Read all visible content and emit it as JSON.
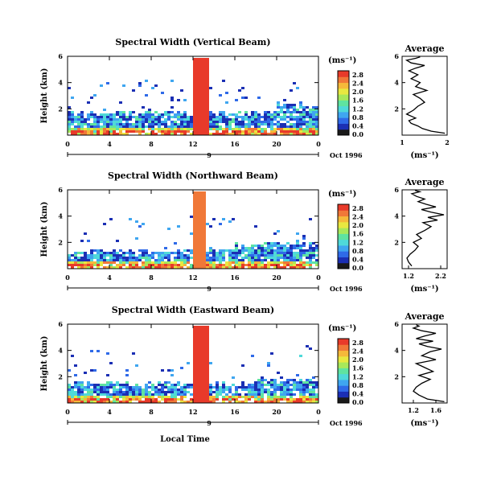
{
  "x_axis_label": "Local Time",
  "date_label": "Oct 1996",
  "colors": {
    "colormap": [
      "#1a1a1a",
      "#1b2fb4",
      "#2f6ae8",
      "#3fa6f0",
      "#4fd9d9",
      "#5fe3a0",
      "#a8e85a",
      "#e8e840",
      "#f5b93a",
      "#f07838",
      "#e83a2a"
    ]
  },
  "chart_data": [
    {
      "type": "heatmap",
      "title": "Spectral Width (Vertical Beam)",
      "xlabel": "",
      "ylabel": "Height (km)",
      "xlim": [
        0,
        24
      ],
      "ylim": [
        0,
        6
      ],
      "x_ticks": [
        "0",
        "4",
        "8",
        "12",
        "16",
        "20",
        "0"
      ],
      "y_ticks": [
        "2",
        "4",
        "6"
      ],
      "day_label": "9",
      "colorbar": {
        "unit": "(ms⁻¹)",
        "ticks": [
          "0.0",
          "0.4",
          "0.8",
          "1.2",
          "1.6",
          "2.0",
          "2.4",
          "2.8"
        ],
        "max": 2.8
      },
      "field": {
        "base_top_km": 1.8,
        "burst_start_h": 12,
        "burst_end_h": 13.5,
        "burst_top_km": 6,
        "burst_value": 2.7,
        "late_bump_start_h": 20,
        "late_bump_top_km": 2.4
      }
    },
    {
      "type": "heatmap",
      "title": "Spectral Width (Northward Beam)",
      "xlabel": "",
      "ylabel": "Height (km)",
      "xlim": [
        0,
        24
      ],
      "ylim": [
        0,
        6
      ],
      "x_ticks": [
        "0",
        "4",
        "8",
        "12",
        "16",
        "20",
        "0"
      ],
      "y_ticks": [
        "2",
        "4",
        "6"
      ],
      "day_label": "9",
      "colorbar": {
        "unit": "(ms⁻¹)",
        "ticks": [
          "0.0",
          "0.4",
          "0.8",
          "1.2",
          "1.6",
          "2.0",
          "2.4",
          "2.8"
        ],
        "max": 2.8
      },
      "field": {
        "base_top_km": 1.4,
        "burst_start_h": 12,
        "burst_end_h": 13.2,
        "burst_top_km": 6,
        "burst_value": 2.6,
        "late_bump_start_h": 16,
        "late_bump_top_km": 2.0
      }
    },
    {
      "type": "heatmap",
      "title": "Spectral Width (Eastward Beam)",
      "xlabel": "Local Time",
      "ylabel": "Height (km)",
      "xlim": [
        0,
        24
      ],
      "ylim": [
        0,
        6
      ],
      "x_ticks": [
        "0",
        "4",
        "8",
        "12",
        "16",
        "20",
        "0"
      ],
      "y_ticks": [
        "2",
        "4",
        "6"
      ],
      "day_label": "9",
      "colorbar": {
        "unit": "(ms⁻¹)",
        "ticks": [
          "0.0",
          "0.4",
          "0.8",
          "1.2",
          "1.6",
          "2.0",
          "2.4",
          "2.8"
        ],
        "max": 2.8
      },
      "field": {
        "base_top_km": 1.6,
        "burst_start_h": 12,
        "burst_end_h": 13.4,
        "burst_top_km": 6,
        "burst_value": 2.7,
        "late_bump_start_h": 18,
        "late_bump_top_km": 2.0
      }
    },
    {
      "type": "line",
      "title": "Average",
      "xlabel": "(ms⁻¹)",
      "ylabel": "",
      "xlim": [
        1,
        2
      ],
      "ylim": [
        0,
        6
      ],
      "x_ticks": [
        "1",
        "2"
      ],
      "y_ticks": [
        "2",
        "4",
        "6"
      ],
      "series": [
        {
          "x": [
            1.95,
            1.65,
            1.45,
            1.35,
            1.2,
            1.15,
            1.3,
            1.1,
            1.25,
            1.35,
            1.5,
            1.4,
            1.25,
            1.55,
            1.3,
            1.4,
            1.2,
            1.35,
            1.15,
            1.3,
            1.5,
            1.2,
            1.1,
            1.3,
            1.4
          ],
          "y": [
            0.15,
            0.3,
            0.5,
            0.7,
            0.9,
            1.1,
            1.3,
            1.6,
            1.9,
            2.2,
            2.5,
            2.8,
            3.1,
            3.4,
            3.7,
            4.0,
            4.3,
            4.6,
            4.9,
            5.1,
            5.3,
            5.5,
            5.7,
            5.85,
            5.95
          ]
        }
      ]
    },
    {
      "type": "line",
      "title": "Average",
      "xlabel": "(ms⁻¹)",
      "ylabel": "",
      "xlim": [
        1.0,
        2.4
      ],
      "ylim": [
        0,
        6
      ],
      "x_ticks": [
        "1.2",
        "2.2"
      ],
      "y_ticks": [
        "2",
        "4",
        "6"
      ],
      "series": [
        {
          "x": [
            1.3,
            1.2,
            1.15,
            1.25,
            1.4,
            1.5,
            1.35,
            1.6,
            1.45,
            1.7,
            1.9,
            1.65,
            2.1,
            1.8,
            2.3,
            1.9,
            1.6,
            2.05,
            1.75,
            1.5,
            1.7,
            1.45,
            1.3,
            1.55,
            1.4
          ],
          "y": [
            0.2,
            0.5,
            0.8,
            1.1,
            1.4,
            1.7,
            2.0,
            2.3,
            2.6,
            2.9,
            3.2,
            3.5,
            3.7,
            3.9,
            4.1,
            4.3,
            4.5,
            4.7,
            4.9,
            5.1,
            5.3,
            5.5,
            5.7,
            5.85,
            5.95
          ]
        }
      ]
    },
    {
      "type": "line",
      "title": "Average",
      "xlabel": "(ms⁻¹)",
      "ylabel": "",
      "xlim": [
        1.0,
        1.8
      ],
      "ylim": [
        0,
        6
      ],
      "x_ticks": [
        "1.2",
        "1.6"
      ],
      "y_ticks": [
        "2",
        "4",
        "6"
      ],
      "series": [
        {
          "x": [
            1.75,
            1.45,
            1.3,
            1.2,
            1.25,
            1.35,
            1.5,
            1.3,
            1.55,
            1.4,
            1.25,
            1.6,
            1.35,
            1.5,
            1.7,
            1.45,
            1.3,
            1.55,
            1.25,
            1.4,
            1.6,
            1.35,
            1.2,
            1.3,
            1.25
          ],
          "y": [
            0.1,
            0.3,
            0.6,
            0.9,
            1.2,
            1.5,
            1.8,
            2.1,
            2.4,
            2.7,
            3.0,
            3.3,
            3.6,
            3.9,
            4.1,
            4.3,
            4.5,
            4.7,
            4.9,
            5.1,
            5.3,
            5.5,
            5.7,
            5.85,
            5.95
          ]
        }
      ]
    }
  ]
}
